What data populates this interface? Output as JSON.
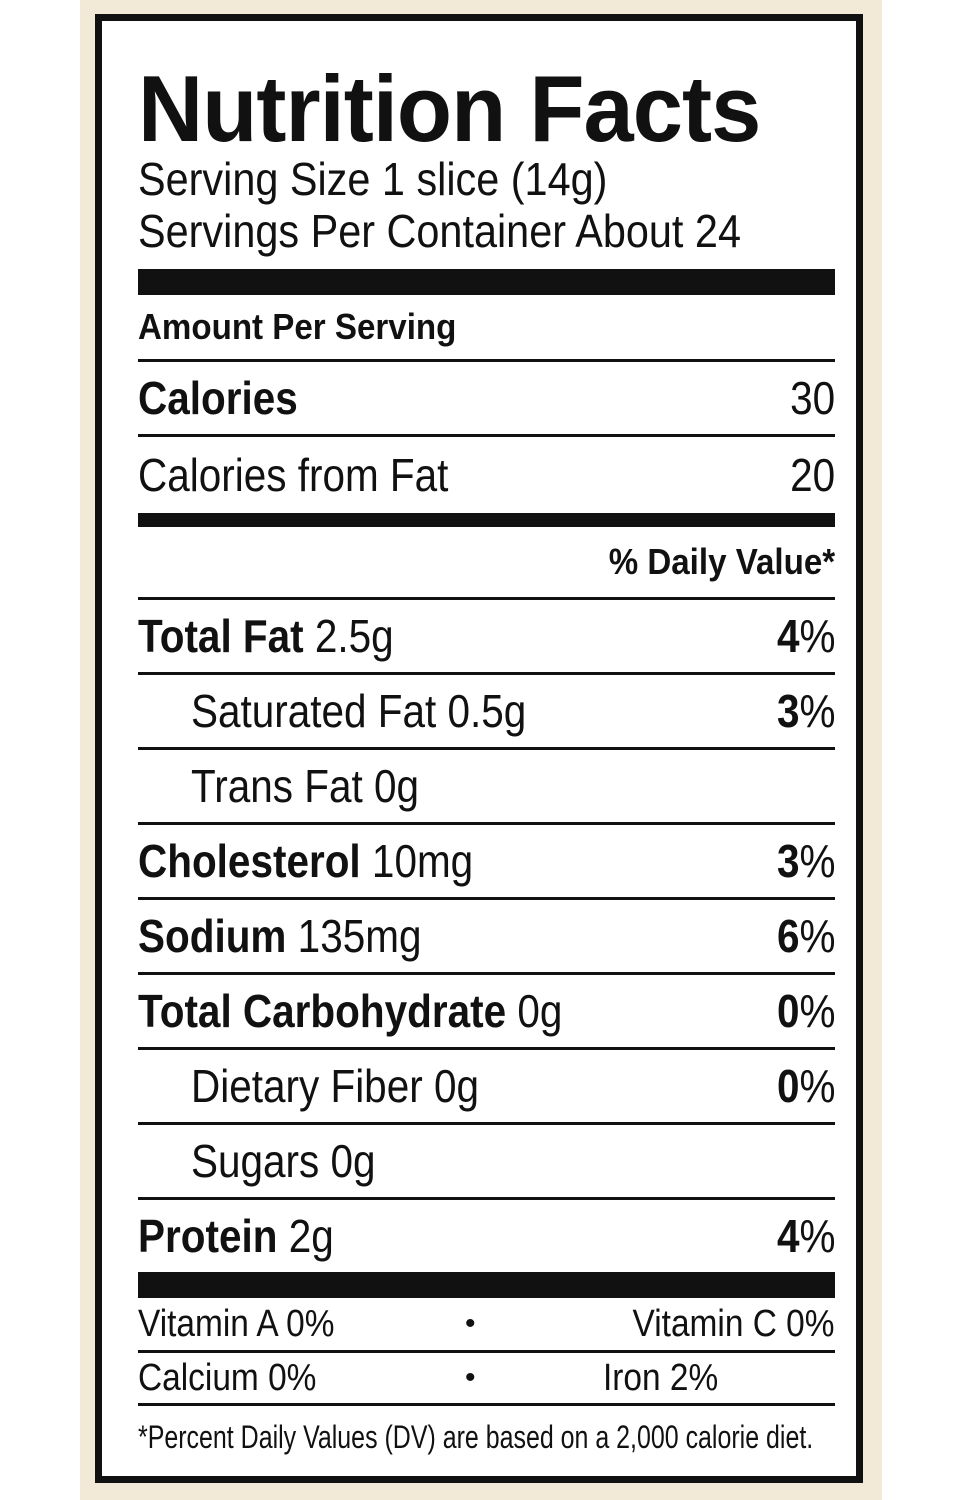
{
  "title": "Nutrition Facts",
  "serving_size": "Serving Size 1 slice (14g)",
  "servings_per_container": "Servings Per Container About 24",
  "amount_per_serving": "Amount Per Serving",
  "calories": {
    "label": "Calories",
    "value": "30"
  },
  "calories_from_fat": {
    "label": "Calories from Fat",
    "value": "20"
  },
  "daily_value_header": "% Daily Value*",
  "nutrients": [
    {
      "name": "Total Fat",
      "amount": "2.5g",
      "dv_num": "4",
      "dv_pct": "%"
    },
    {
      "name": "Saturated Fat 0.5g",
      "dv_num": "3",
      "dv_pct": "%"
    },
    {
      "name": "Trans Fat 0g"
    },
    {
      "name": "Cholesterol",
      "amount": "10mg",
      "dv_num": "3",
      "dv_pct": "%"
    },
    {
      "name": "Sodium",
      "amount": "135mg",
      "dv_num": "6",
      "dv_pct": "%"
    },
    {
      "name": "Total Carbohydrate",
      "amount": "0g",
      "dv_num": "0",
      "dv_pct": "%"
    },
    {
      "name": "Dietary Fiber 0g",
      "dv_num": "0",
      "dv_pct": "%"
    },
    {
      "name": "Sugars 0g"
    },
    {
      "name": "Protein",
      "amount": "2g",
      "dv_num": "4",
      "dv_pct": "%"
    }
  ],
  "vitamins": [
    {
      "left": "Vitamin A 0%",
      "bullet": "•",
      "right": "Vitamin C 0%"
    },
    {
      "left": "Calcium 0%",
      "bullet": "•",
      "right": "Iron 2%"
    }
  ],
  "footnote": "*Percent Daily Values (DV) are based on a 2,000 calorie diet.",
  "colors": {
    "ink": "#111111",
    "background_border": "#f3e9d7",
    "label_bg": "#ffffff"
  }
}
